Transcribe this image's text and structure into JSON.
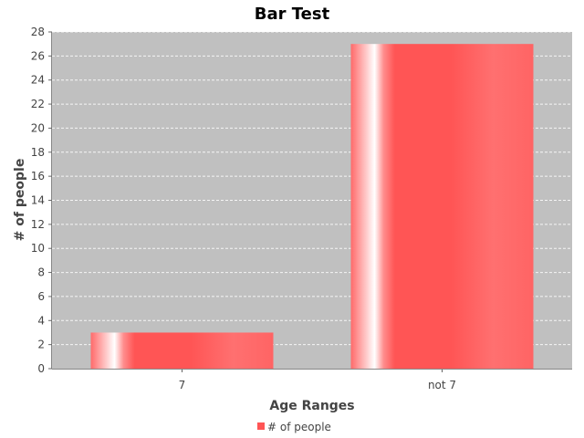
{
  "chart_data": {
    "type": "bar",
    "title": "Bar Test",
    "xlabel": "Age Ranges",
    "ylabel": "# of people",
    "categories": [
      "7",
      "not 7"
    ],
    "series": [
      {
        "name": "# of people",
        "values": [
          3,
          27
        ],
        "color": "#ff5555"
      }
    ],
    "ylim": [
      0,
      28
    ],
    "yticks": [
      0,
      2,
      4,
      6,
      8,
      10,
      12,
      14,
      16,
      18,
      20,
      22,
      24,
      26,
      28
    ],
    "grid": true,
    "legend_position": "bottom",
    "plot_background": "#c0c0c0"
  }
}
